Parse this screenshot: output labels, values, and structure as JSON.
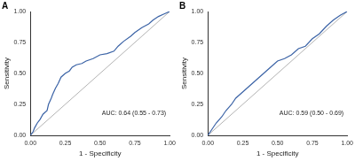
{
  "chart_data": [
    {
      "type": "line",
      "title": "A",
      "x_label": "1 - Specificity",
      "y_label": "Sensitivity",
      "annotation": "AUC: 0.64 (0.55 - 0.73)",
      "xlim": [
        0,
        1
      ],
      "ylim": [
        0,
        1
      ],
      "xticks": [
        {
          "value": 0,
          "label": "0.00"
        },
        {
          "value": 0.25,
          "label": "0.25"
        },
        {
          "value": 0.5,
          "label": "0.50"
        },
        {
          "value": 0.75,
          "label": "0.75"
        },
        {
          "value": 1,
          "label": "1.00"
        }
      ],
      "yticks": [
        {
          "value": 0,
          "label": "0.00"
        },
        {
          "value": 0.25,
          "label": "0.25"
        },
        {
          "value": 0.5,
          "label": "0.50"
        },
        {
          "value": 0.75,
          "label": "0.75"
        },
        {
          "value": 1,
          "label": "1.00"
        }
      ],
      "grid": false,
      "series": [
        {
          "color": "#3b63a6",
          "line_style": "solid",
          "x": [
            0,
            0.02,
            0.03,
            0.05,
            0.07,
            0.09,
            0.12,
            0.13,
            0.15,
            0.16,
            0.18,
            0.2,
            0.22,
            0.25,
            0.28,
            0.3,
            0.33,
            0.37,
            0.4,
            0.45,
            0.5,
            0.55,
            0.6,
            0.63,
            0.67,
            0.72,
            0.75,
            0.8,
            0.85,
            0.88,
            0.92,
            0.96,
            1
          ],
          "values": [
            0,
            0.03,
            0.06,
            0.1,
            0.13,
            0.17,
            0.2,
            0.25,
            0.3,
            0.33,
            0.38,
            0.42,
            0.47,
            0.5,
            0.52,
            0.55,
            0.57,
            0.58,
            0.6,
            0.62,
            0.65,
            0.66,
            0.68,
            0.72,
            0.76,
            0.8,
            0.83,
            0.87,
            0.9,
            0.93,
            0.96,
            0.98,
            1
          ]
        },
        {
          "color": "#a0a0a0",
          "line_style": "solid",
          "x": [
            0,
            1
          ],
          "values": [
            0,
            1
          ]
        }
      ]
    },
    {
      "type": "line",
      "title": "B",
      "x_label": "1 - Specificity",
      "y_label": "Sensitivity",
      "annotation": "AUC: 0.59 (0.50 - 0.69)",
      "xlim": [
        0,
        1
      ],
      "ylim": [
        0,
        1
      ],
      "xticks": [
        {
          "value": 0,
          "label": "0.00"
        },
        {
          "value": 0.25,
          "label": "0.25"
        },
        {
          "value": 0.5,
          "label": "0.50"
        },
        {
          "value": 0.75,
          "label": "0.75"
        },
        {
          "value": 1,
          "label": "1.00"
        }
      ],
      "yticks": [
        {
          "value": 0,
          "label": "0.00"
        },
        {
          "value": 0.25,
          "label": "0.25"
        },
        {
          "value": 0.5,
          "label": "0.50"
        },
        {
          "value": 0.75,
          "label": "0.75"
        },
        {
          "value": 1,
          "label": "1.00"
        }
      ],
      "grid": false,
      "series": [
        {
          "color": "#3b63a6",
          "line_style": "solid",
          "x": [
            0,
            0.03,
            0.06,
            0.1,
            0.13,
            0.17,
            0.2,
            0.25,
            0.3,
            0.35,
            0.4,
            0.45,
            0.5,
            0.55,
            0.6,
            0.65,
            0.7,
            0.75,
            0.8,
            0.85,
            0.9,
            0.95,
            1
          ],
          "values": [
            0,
            0.05,
            0.1,
            0.15,
            0.2,
            0.25,
            0.3,
            0.35,
            0.4,
            0.45,
            0.5,
            0.55,
            0.6,
            0.62,
            0.65,
            0.7,
            0.72,
            0.78,
            0.82,
            0.88,
            0.93,
            0.97,
            1
          ]
        },
        {
          "color": "#a0a0a0",
          "line_style": "solid",
          "x": [
            0,
            1
          ],
          "values": [
            0,
            1
          ]
        }
      ]
    }
  ]
}
